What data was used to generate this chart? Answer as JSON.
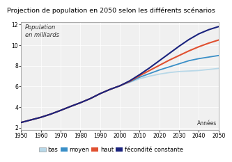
{
  "title": "Projection de population en 2050 selon les différents scénarios",
  "ylabel_text": "Population\nen milliards",
  "xlabel_text": "Années",
  "xlim": [
    1950,
    2050
  ],
  "ylim": [
    1.8,
    12.2
  ],
  "yticks": [
    2,
    4,
    6,
    8,
    10,
    12
  ],
  "xticks": [
    1950,
    1960,
    1970,
    1980,
    1990,
    2000,
    2010,
    2020,
    2030,
    2040,
    2050
  ],
  "years_all": [
    1950,
    1955,
    1960,
    1965,
    1970,
    1975,
    1980,
    1985,
    1990,
    1995,
    2000,
    2005,
    2010,
    2015,
    2020,
    2025,
    2030,
    2035,
    2040,
    2045,
    2050
  ],
  "pop_moyen": [
    2.52,
    2.77,
    3.02,
    3.33,
    3.69,
    4.07,
    4.43,
    4.83,
    5.31,
    5.72,
    6.07,
    6.45,
    6.9,
    7.25,
    7.6,
    7.9,
    8.2,
    8.5,
    8.7,
    8.85,
    9.0
  ],
  "pop_bas": [
    2.52,
    2.77,
    3.02,
    3.33,
    3.69,
    4.07,
    4.43,
    4.83,
    5.31,
    5.72,
    6.07,
    6.4,
    6.75,
    7.0,
    7.2,
    7.35,
    7.45,
    7.5,
    7.55,
    7.65,
    7.75
  ],
  "pop_haut": [
    2.52,
    2.77,
    3.02,
    3.33,
    3.69,
    4.07,
    4.43,
    4.83,
    5.31,
    5.72,
    6.07,
    6.5,
    7.05,
    7.55,
    8.05,
    8.55,
    9.0,
    9.45,
    9.85,
    10.2,
    10.5
  ],
  "pop_fecondite": [
    2.52,
    2.77,
    3.02,
    3.33,
    3.69,
    4.07,
    4.43,
    4.83,
    5.31,
    5.72,
    6.07,
    6.55,
    7.15,
    7.8,
    8.5,
    9.2,
    9.9,
    10.55,
    11.1,
    11.5,
    11.8
  ],
  "color_bas": "#b8d8e8",
  "color_moyen": "#3a8fc7",
  "color_haut": "#e05030",
  "color_fecondite": "#1a237e",
  "legend_labels": [
    "bas",
    "moyen",
    "haut",
    "fécondité constante"
  ],
  "title_fontsize": 6.8,
  "axis_fontsize": 5.5,
  "legend_fontsize": 6,
  "ylabel_fontsize": 6.0,
  "bg_color": "#f0f0f0"
}
